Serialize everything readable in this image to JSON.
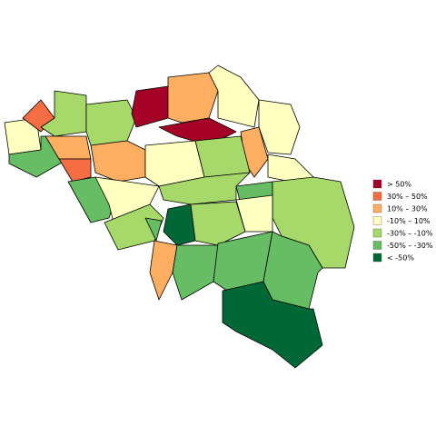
{
  "legend": {
    "items": [
      {
        "label": "> 50%",
        "color": "#a50026"
      },
      {
        "label": "30% – 50%",
        "color": "#f46d43"
      },
      {
        "label": "10% – 30%",
        "color": "#fdae61"
      },
      {
        "label": "-10% – 10%",
        "color": "#ffffbf"
      },
      {
        "label": "-30% – -10%",
        "color": "#a6d96a"
      },
      {
        "label": "-50% – -30%",
        "color": "#66bd63"
      },
      {
        "label": "< -50%",
        "color": "#006837"
      }
    ]
  }
}
